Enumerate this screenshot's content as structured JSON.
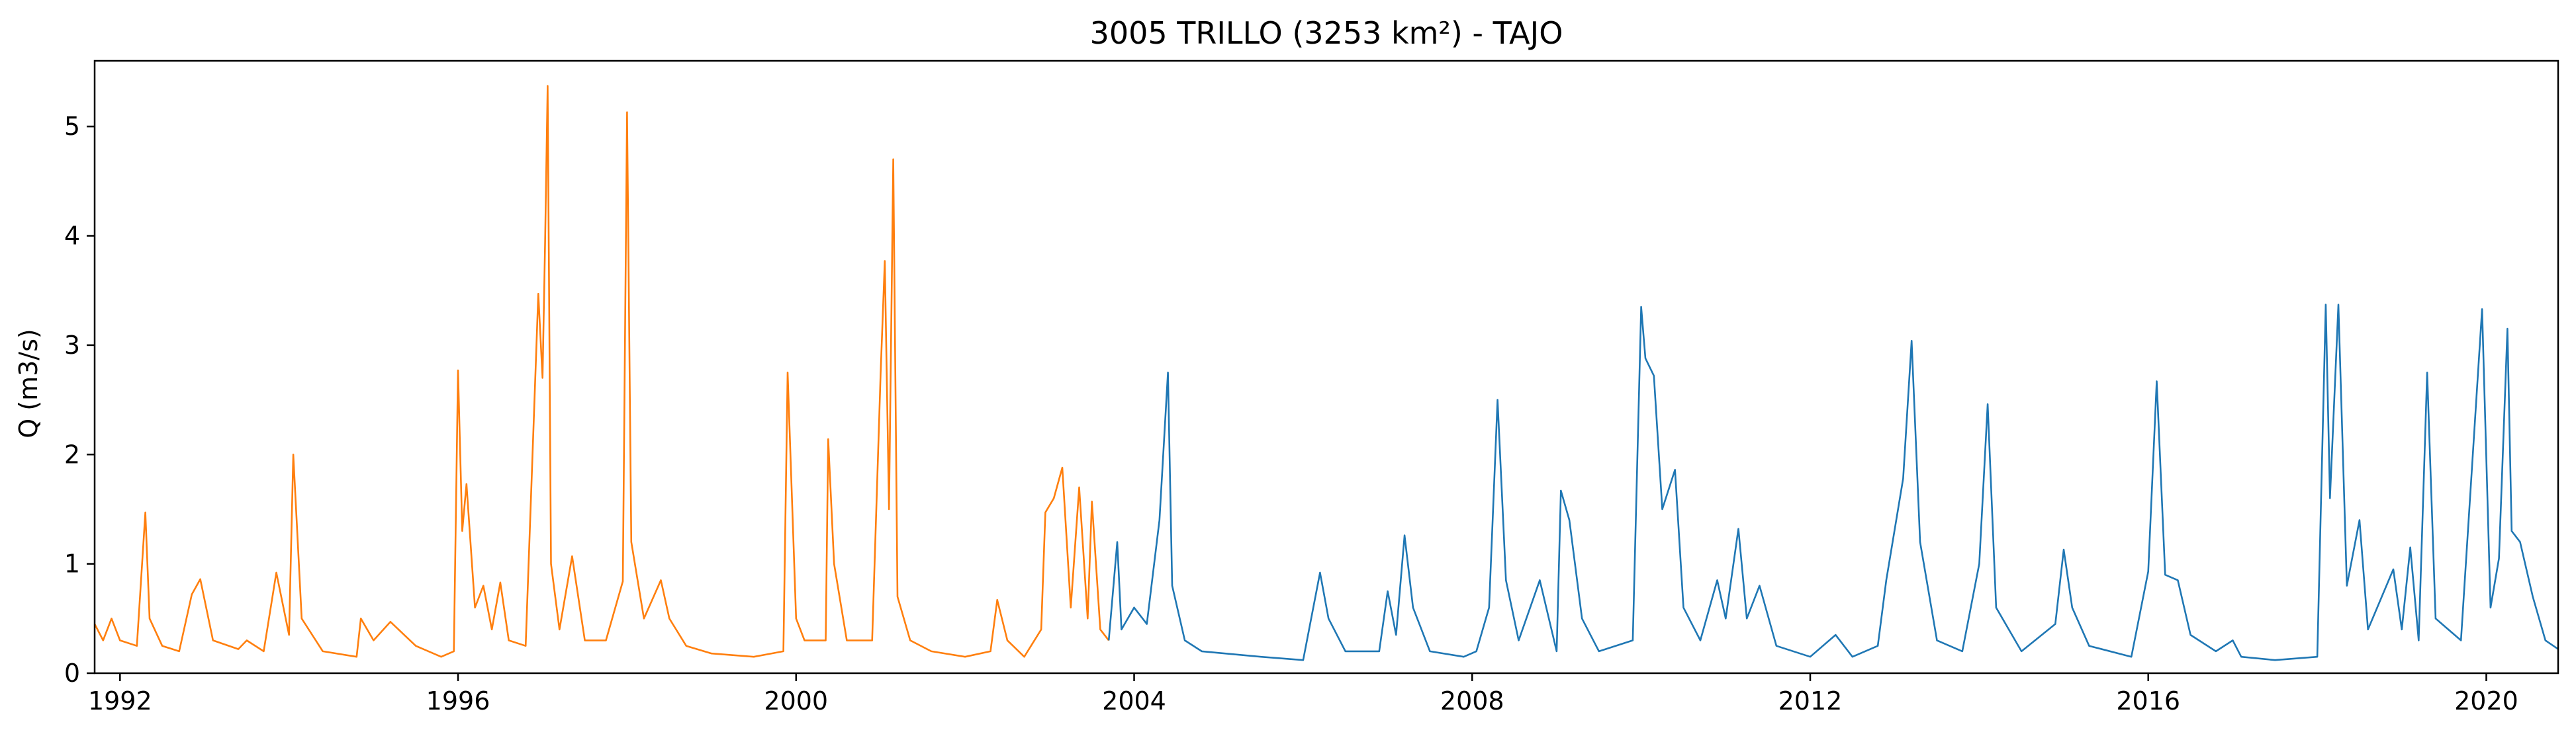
{
  "chart_data": {
    "type": "line",
    "title": "3005 TRILLO (3253 km²) - TAJO",
    "xlabel": "",
    "ylabel": "Q (m3/s)",
    "xlim": [
      1991.7,
      2020.85
    ],
    "ylim": [
      0,
      5.6
    ],
    "x_ticks": [
      1992,
      1996,
      2000,
      2004,
      2008,
      2012,
      2016,
      2020
    ],
    "x_tick_labels": [
      "1992",
      "1996",
      "2000",
      "2004",
      "2008",
      "2012",
      "2016",
      "2020"
    ],
    "y_ticks": [
      0,
      1,
      2,
      3,
      4,
      5
    ],
    "y_tick_labels": [
      "0",
      "1",
      "2",
      "3",
      "4",
      "5"
    ],
    "grid": false,
    "series": [
      {
        "color": "#ff7f0e",
        "points": [
          [
            1991.7,
            0.45
          ],
          [
            1991.8,
            0.3
          ],
          [
            1991.9,
            0.5
          ],
          [
            1992.0,
            0.3
          ],
          [
            1992.2,
            0.25
          ],
          [
            1992.3,
            1.47
          ],
          [
            1992.35,
            0.5
          ],
          [
            1992.5,
            0.25
          ],
          [
            1992.7,
            0.2
          ],
          [
            1992.85,
            0.72
          ],
          [
            1992.95,
            0.86
          ],
          [
            1993.1,
            0.3
          ],
          [
            1993.4,
            0.22
          ],
          [
            1993.5,
            0.3
          ],
          [
            1993.7,
            0.2
          ],
          [
            1993.85,
            0.92
          ],
          [
            1994.0,
            0.35
          ],
          [
            1994.05,
            2.0
          ],
          [
            1994.15,
            0.5
          ],
          [
            1994.4,
            0.2
          ],
          [
            1994.8,
            0.15
          ],
          [
            1994.85,
            0.5
          ],
          [
            1995.0,
            0.3
          ],
          [
            1995.2,
            0.47
          ],
          [
            1995.5,
            0.25
          ],
          [
            1995.8,
            0.15
          ],
          [
            1995.95,
            0.2
          ],
          [
            1996.0,
            2.77
          ],
          [
            1996.05,
            1.3
          ],
          [
            1996.1,
            1.73
          ],
          [
            1996.2,
            0.6
          ],
          [
            1996.3,
            0.8
          ],
          [
            1996.4,
            0.4
          ],
          [
            1996.5,
            0.83
          ],
          [
            1996.6,
            0.3
          ],
          [
            1996.8,
            0.25
          ],
          [
            1996.95,
            3.47
          ],
          [
            1997.0,
            2.7
          ],
          [
            1997.03,
            3.95
          ],
          [
            1997.06,
            5.37
          ],
          [
            1997.1,
            1.0
          ],
          [
            1997.2,
            0.4
          ],
          [
            1997.35,
            1.07
          ],
          [
            1997.5,
            0.3
          ],
          [
            1997.75,
            0.3
          ],
          [
            1997.95,
            0.84
          ],
          [
            1998.0,
            5.13
          ],
          [
            1998.05,
            1.2
          ],
          [
            1998.2,
            0.5
          ],
          [
            1998.4,
            0.85
          ],
          [
            1998.5,
            0.5
          ],
          [
            1998.7,
            0.25
          ],
          [
            1999.0,
            0.18
          ],
          [
            1999.5,
            0.15
          ],
          [
            1999.85,
            0.2
          ],
          [
            1999.9,
            2.75
          ],
          [
            2000.0,
            0.5
          ],
          [
            2000.1,
            0.3
          ],
          [
            2000.35,
            0.3
          ],
          [
            2000.38,
            2.14
          ],
          [
            2000.45,
            1.0
          ],
          [
            2000.6,
            0.3
          ],
          [
            2000.9,
            0.3
          ],
          [
            2001.0,
            2.74
          ],
          [
            2001.05,
            3.77
          ],
          [
            2001.1,
            1.5
          ],
          [
            2001.15,
            4.7
          ],
          [
            2001.2,
            0.7
          ],
          [
            2001.35,
            0.3
          ],
          [
            2001.6,
            0.2
          ],
          [
            2002.0,
            0.15
          ],
          [
            2002.3,
            0.2
          ],
          [
            2002.38,
            0.67
          ],
          [
            2002.5,
            0.3
          ],
          [
            2002.7,
            0.15
          ],
          [
            2002.9,
            0.4
          ],
          [
            2002.95,
            1.47
          ],
          [
            2003.05,
            1.6
          ],
          [
            2003.15,
            1.88
          ],
          [
            2003.25,
            0.6
          ],
          [
            2003.35,
            1.7
          ],
          [
            2003.45,
            0.5
          ],
          [
            2003.5,
            1.57
          ],
          [
            2003.6,
            0.4
          ],
          [
            2003.7,
            0.3
          ]
        ]
      },
      {
        "color": "#1f77b4",
        "points": [
          [
            2003.7,
            0.3
          ],
          [
            2003.8,
            1.2
          ],
          [
            2003.85,
            0.4
          ],
          [
            2004.0,
            0.6
          ],
          [
            2004.15,
            0.45
          ],
          [
            2004.3,
            1.4
          ],
          [
            2004.4,
            2.75
          ],
          [
            2004.45,
            0.8
          ],
          [
            2004.6,
            0.3
          ],
          [
            2004.8,
            0.2
          ],
          [
            2005.5,
            0.15
          ],
          [
            2006.0,
            0.12
          ],
          [
            2006.2,
            0.92
          ],
          [
            2006.3,
            0.5
          ],
          [
            2006.5,
            0.2
          ],
          [
            2006.9,
            0.2
          ],
          [
            2007.0,
            0.75
          ],
          [
            2007.1,
            0.35
          ],
          [
            2007.2,
            1.26
          ],
          [
            2007.3,
            0.6
          ],
          [
            2007.5,
            0.2
          ],
          [
            2007.9,
            0.15
          ],
          [
            2008.05,
            0.2
          ],
          [
            2008.2,
            0.6
          ],
          [
            2008.3,
            2.5
          ],
          [
            2008.4,
            0.85
          ],
          [
            2008.55,
            0.3
          ],
          [
            2008.8,
            0.85
          ],
          [
            2009.0,
            0.2
          ],
          [
            2009.05,
            1.67
          ],
          [
            2009.15,
            1.4
          ],
          [
            2009.3,
            0.5
          ],
          [
            2009.5,
            0.2
          ],
          [
            2009.9,
            0.3
          ],
          [
            2010.0,
            3.35
          ],
          [
            2010.05,
            2.88
          ],
          [
            2010.15,
            2.72
          ],
          [
            2010.25,
            1.5
          ],
          [
            2010.4,
            1.86
          ],
          [
            2010.5,
            0.6
          ],
          [
            2010.7,
            0.3
          ],
          [
            2010.9,
            0.85
          ],
          [
            2011.0,
            0.5
          ],
          [
            2011.15,
            1.32
          ],
          [
            2011.25,
            0.5
          ],
          [
            2011.4,
            0.8
          ],
          [
            2011.6,
            0.25
          ],
          [
            2012.0,
            0.15
          ],
          [
            2012.3,
            0.35
          ],
          [
            2012.5,
            0.15
          ],
          [
            2012.8,
            0.25
          ],
          [
            2012.9,
            0.85
          ],
          [
            2013.1,
            1.78
          ],
          [
            2013.2,
            3.04
          ],
          [
            2013.3,
            1.2
          ],
          [
            2013.5,
            0.3
          ],
          [
            2013.8,
            0.2
          ],
          [
            2014.0,
            1.0
          ],
          [
            2014.1,
            2.46
          ],
          [
            2014.2,
            0.6
          ],
          [
            2014.5,
            0.2
          ],
          [
            2014.9,
            0.45
          ],
          [
            2015.0,
            1.13
          ],
          [
            2015.1,
            0.6
          ],
          [
            2015.3,
            0.25
          ],
          [
            2015.8,
            0.15
          ],
          [
            2016.0,
            0.93
          ],
          [
            2016.1,
            2.67
          ],
          [
            2016.2,
            0.9
          ],
          [
            2016.35,
            0.85
          ],
          [
            2016.5,
            0.35
          ],
          [
            2016.8,
            0.2
          ],
          [
            2017.0,
            0.3
          ],
          [
            2017.1,
            0.15
          ],
          [
            2017.5,
            0.12
          ],
          [
            2018.0,
            0.15
          ],
          [
            2018.1,
            3.37
          ],
          [
            2018.15,
            1.6
          ],
          [
            2018.25,
            3.37
          ],
          [
            2018.35,
            0.8
          ],
          [
            2018.5,
            1.4
          ],
          [
            2018.6,
            0.4
          ],
          [
            2018.9,
            0.95
          ],
          [
            2019.0,
            0.4
          ],
          [
            2019.1,
            1.15
          ],
          [
            2019.2,
            0.3
          ],
          [
            2019.3,
            2.75
          ],
          [
            2019.4,
            0.5
          ],
          [
            2019.7,
            0.3
          ],
          [
            2019.95,
            3.33
          ],
          [
            2020.05,
            0.6
          ],
          [
            2020.15,
            1.05
          ],
          [
            2020.25,
            3.15
          ],
          [
            2020.3,
            1.3
          ],
          [
            2020.4,
            1.2
          ],
          [
            2020.55,
            0.7
          ],
          [
            2020.7,
            0.3
          ],
          [
            2020.85,
            0.22
          ]
        ]
      }
    ]
  }
}
